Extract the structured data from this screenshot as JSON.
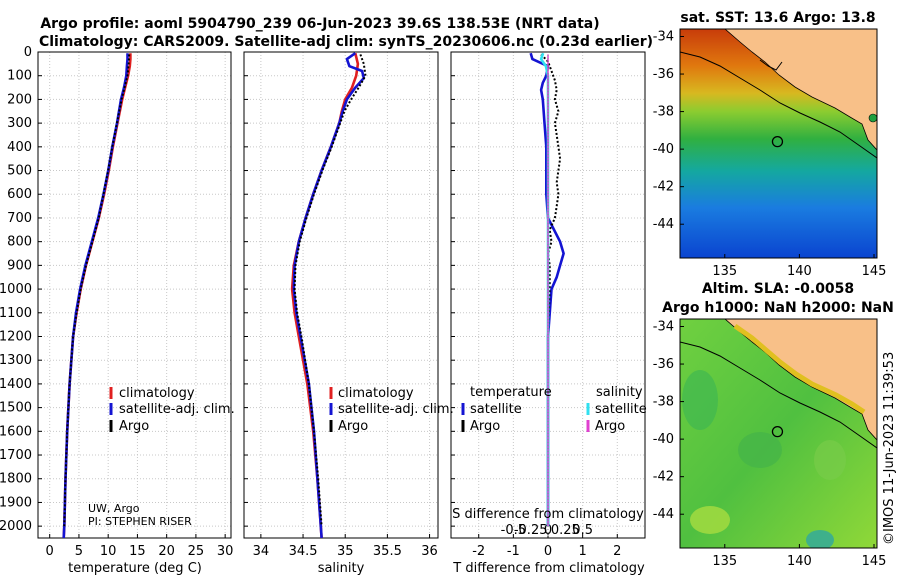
{
  "header": {
    "title_line1": "Argo profile: aoml 5904790_239 06-Jun-2023 39.6S 138.53E (NRT data)",
    "title_line2": "Climatology: CARS2009. Satellite-adj clim: synTS_20230606.nc (0.23d earlier)"
  },
  "colors": {
    "climatology": "#e02020",
    "satellite_adj": "#1414d2",
    "argo": "#000000",
    "sat_salinity": "#30e0f0",
    "argo_salinity": "#e040d0",
    "land": "#f8c088"
  },
  "chart_data": [
    {
      "type": "line",
      "id": "temperature",
      "xlabel": "temperature (deg C)",
      "ylabel": "",
      "xlim": [
        -2,
        31
      ],
      "ylim": [
        2050,
        0
      ],
      "xticks": [
        0,
        5,
        10,
        15,
        20,
        25,
        30
      ],
      "yticks": [
        0,
        100,
        200,
        300,
        400,
        500,
        600,
        700,
        800,
        900,
        1000,
        1100,
        1200,
        1300,
        1400,
        1500,
        1600,
        1700,
        1800,
        1900,
        2000
      ],
      "grid": true,
      "legend": {
        "placement": "center-right",
        "entries": [
          "climatology",
          "satellite-adj. clim.",
          "Argo"
        ]
      },
      "annotations": [
        "UW, Argo",
        "PI: STEPHEN RISER"
      ],
      "series": [
        {
          "name": "climatology",
          "depth": [
            5,
            30,
            60,
            100,
            150,
            200,
            300,
            400,
            500,
            600,
            700,
            800,
            900,
            1000,
            1100,
            1200,
            1400,
            1600,
            1800,
            2000,
            2050
          ],
          "values": [
            13.8,
            13.8,
            13.7,
            13.4,
            12.9,
            12.4,
            11.6,
            10.8,
            10.1,
            9.3,
            8.4,
            7.3,
            6.2,
            5.3,
            4.6,
            4.0,
            3.4,
            3.0,
            2.7,
            2.5,
            2.4
          ]
        },
        {
          "name": "satellite-adj. clim.",
          "depth": [
            5,
            30,
            60,
            100,
            150,
            200,
            300,
            400,
            500,
            600,
            700,
            800,
            900,
            1000,
            1100,
            1200,
            1400,
            1600,
            1800,
            2000,
            2050
          ],
          "values": [
            13.3,
            13.3,
            13.2,
            13.1,
            12.7,
            12.2,
            11.5,
            10.7,
            10.0,
            9.2,
            8.3,
            7.2,
            6.1,
            5.2,
            4.5,
            4.0,
            3.4,
            3.0,
            2.7,
            2.5,
            2.4
          ]
        },
        {
          "name": "Argo",
          "depth": [
            10,
            50,
            100,
            150,
            200,
            300,
            400,
            500,
            600,
            700,
            800,
            900,
            1000,
            1100,
            1200,
            1400,
            1600,
            1800,
            2000
          ],
          "values": [
            13.6,
            13.5,
            13.3,
            12.8,
            12.3,
            11.5,
            10.7,
            10.0,
            9.2,
            8.4,
            7.3,
            6.2,
            5.3,
            4.6,
            4.0,
            3.4,
            3.0,
            2.7,
            2.5
          ]
        }
      ]
    },
    {
      "type": "line",
      "id": "salinity",
      "xlabel": "salinity",
      "xlim": [
        33.8,
        36.1
      ],
      "ylim": [
        2050,
        0
      ],
      "xticks": [
        34,
        34.5,
        35,
        35.5,
        36
      ],
      "grid": true,
      "legend": {
        "placement": "center-right",
        "entries": [
          "climatology",
          "satellite-adj. clim.",
          "Argo"
        ]
      },
      "series": [
        {
          "name": "climatology",
          "depth": [
            5,
            50,
            100,
            150,
            200,
            250,
            300,
            400,
            500,
            600,
            700,
            800,
            900,
            1000,
            1100,
            1200,
            1400,
            1600,
            1800,
            2000,
            2050
          ],
          "values": [
            35.12,
            35.15,
            35.13,
            35.08,
            35.0,
            34.96,
            34.93,
            34.83,
            34.72,
            34.62,
            34.53,
            34.45,
            34.39,
            34.37,
            34.4,
            34.45,
            34.55,
            34.62,
            34.67,
            34.71,
            34.72
          ]
        },
        {
          "name": "satellite-adj. clim.",
          "depth": [
            5,
            30,
            60,
            80,
            110,
            150,
            200,
            250,
            300,
            400,
            500,
            600,
            700,
            800,
            900,
            1000,
            1100,
            1200,
            1400,
            1600,
            1800,
            2000,
            2050
          ],
          "values": [
            35.12,
            35.02,
            35.05,
            35.2,
            35.22,
            35.12,
            35.02,
            34.97,
            34.93,
            34.83,
            34.72,
            34.62,
            34.53,
            34.45,
            34.4,
            34.39,
            34.42,
            34.47,
            34.57,
            34.63,
            34.67,
            34.71,
            34.72
          ]
        },
        {
          "name": "Argo",
          "depth": [
            10,
            50,
            100,
            150,
            200,
            250,
            300,
            400,
            500,
            600,
            700,
            800,
            900,
            1000,
            1100,
            1200,
            1400,
            1600,
            1800,
            2000
          ],
          "values": [
            35.18,
            35.22,
            35.24,
            35.16,
            35.07,
            34.99,
            34.94,
            34.84,
            34.73,
            34.63,
            34.54,
            34.46,
            34.41,
            34.4,
            34.43,
            34.48,
            34.57,
            34.63,
            34.68,
            34.72
          ]
        }
      ]
    },
    {
      "type": "line",
      "id": "difference",
      "xlabel": "T difference from climatology",
      "top_xlabel": "S difference from climatology",
      "xlim": [
        -2.8,
        2.8
      ],
      "ylim": [
        2050,
        0
      ],
      "xticks": [
        -2,
        -1,
        0,
        1,
        2
      ],
      "top_xticks_s": [
        -0.5,
        -0.25,
        0,
        0.25,
        0.5
      ],
      "grid": true,
      "legend_temperature": {
        "title": "temperature",
        "entries": [
          "satellite",
          "Argo"
        ]
      },
      "legend_salinity": {
        "title": "salinity",
        "entries": [
          "satellite",
          "Argo"
        ]
      },
      "series": [
        {
          "name": "temperature satellite",
          "depth": [
            5,
            30,
            60,
            100,
            130,
            160,
            200,
            300,
            400,
            500,
            600,
            700,
            800,
            850,
            900,
            950,
            1000,
            1200,
            1500,
            2000
          ],
          "values": [
            -0.5,
            -0.45,
            0.0,
            -0.05,
            -0.15,
            -0.2,
            -0.15,
            -0.1,
            -0.05,
            -0.05,
            -0.05,
            0.0,
            0.35,
            0.45,
            0.35,
            0.25,
            0.1,
            0.0,
            0.0,
            0.0
          ]
        },
        {
          "name": "temperature Argo",
          "depth": [
            10,
            40,
            80,
            120,
            160,
            200,
            250,
            300,
            350,
            400,
            450,
            500,
            550,
            600,
            650,
            700,
            750,
            800,
            850,
            900,
            1000,
            1200,
            1500,
            2000
          ],
          "values": [
            -0.2,
            0.0,
            0.1,
            0.2,
            0.25,
            0.2,
            0.3,
            0.2,
            0.25,
            0.3,
            0.35,
            0.3,
            0.25,
            0.3,
            0.25,
            0.2,
            0.05,
            0.1,
            0.0,
            0.05,
            0.05,
            0.0,
            0.0,
            0.0
          ]
        },
        {
          "name": "salinity satellite",
          "depth": [
            5,
            30,
            60,
            100,
            130,
            160,
            200,
            300,
            500,
            800,
            1000,
            1500,
            2000
          ],
          "values": [
            -0.07,
            -0.1,
            -0.03,
            0.0,
            0.0,
            0.0,
            0.0,
            0.0,
            0.0,
            0.0,
            0.0,
            0.0,
            0.0
          ]
        },
        {
          "name": "salinity Argo",
          "depth": [
            10,
            50,
            100,
            200,
            500,
            1000,
            2000
          ],
          "values": [
            0.0,
            0.0,
            0.0,
            0.0,
            0.0,
            0.0,
            0.0
          ]
        }
      ]
    },
    {
      "type": "heatmap",
      "id": "sst-map",
      "title": "sat. SST: 13.6 Argo: 13.8",
      "xlim": [
        132,
        145.2
      ],
      "ylim": [
        -45.8,
        -33.6
      ],
      "xticks": [
        135,
        140,
        145
      ],
      "yticks": [
        -34,
        -36,
        -38,
        -40,
        -42,
        -44
      ],
      "marker": {
        "lon": 138.53,
        "lat": -39.6
      }
    },
    {
      "type": "heatmap",
      "id": "sla-map",
      "title_line1": "Altim. SLA: -0.0058",
      "title_line2": "Argo h1000: NaN h2000: NaN",
      "xlim": [
        132,
        145.2
      ],
      "ylim": [
        -45.8,
        -33.6
      ],
      "xticks": [
        135,
        140,
        145
      ],
      "yticks": [
        -34,
        -36,
        -38,
        -40,
        -42,
        -44
      ],
      "marker": {
        "lon": 138.53,
        "lat": -39.6
      }
    }
  ],
  "footer": {
    "stamp": "©IMOS 11-Jun-2023 11:39:53"
  }
}
